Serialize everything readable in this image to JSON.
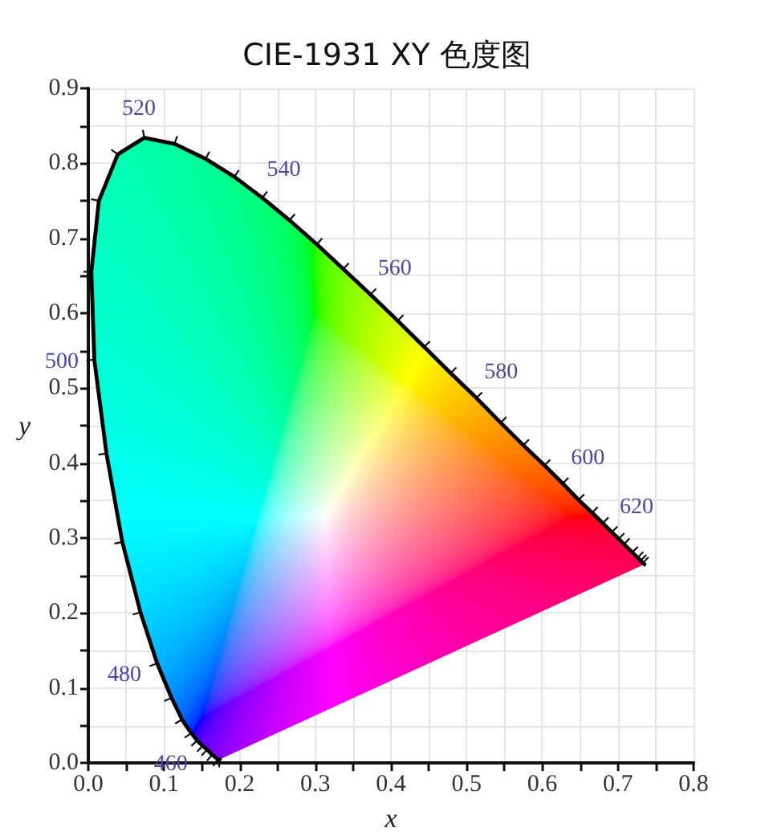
{
  "chart_data": {
    "type": "line",
    "title": "CIE-1931 XY 色度图",
    "xlabel": "x",
    "ylabel": "y",
    "x": [
      0.174,
      0.173,
      0.171,
      0.164,
      0.157,
      0.151,
      0.144,
      0.136,
      0.124,
      0.11,
      0.091,
      0.069,
      0.045,
      0.024,
      0.008,
      0.004,
      0.014,
      0.039,
      0.074,
      0.114,
      0.155,
      0.193,
      0.23,
      0.266,
      0.302,
      0.337,
      0.373,
      0.409,
      0.444,
      0.479,
      0.513,
      0.545,
      0.575,
      0.603,
      0.627,
      0.648,
      0.666,
      0.68,
      0.692,
      0.701,
      0.708,
      0.719,
      0.726,
      0.73,
      0.733,
      0.735
    ],
    "series": [
      {
        "color": "#000000",
        "values": [
          0.005,
          0.005,
          0.005,
          0.011,
          0.018,
          0.023,
          0.03,
          0.04,
          0.058,
          0.087,
          0.133,
          0.201,
          0.295,
          0.413,
          0.538,
          0.655,
          0.75,
          0.812,
          0.834,
          0.826,
          0.806,
          0.782,
          0.754,
          0.724,
          0.692,
          0.659,
          0.625,
          0.59,
          0.555,
          0.52,
          0.487,
          0.454,
          0.424,
          0.397,
          0.373,
          0.351,
          0.334,
          0.32,
          0.308,
          0.299,
          0.292,
          0.281,
          0.274,
          0.27,
          0.267,
          0.265
        ]
      }
    ],
    "xlim": [
      0,
      0.8
    ],
    "ylim": [
      0,
      0.9
    ],
    "xticks": [
      {
        "value": 0,
        "label": "0.0"
      },
      {
        "value": 0.05,
        "label": null
      },
      0.1,
      {
        "value": 0.15,
        "label": null
      },
      0.2,
      {
        "value": 0.25,
        "label": null
      },
      0.3,
      {
        "value": 0.35,
        "label": null
      },
      0.4,
      {
        "value": 0.45,
        "label": null
      },
      0.5,
      {
        "value": 0.55,
        "label": null
      },
      0.6,
      {
        "value": 0.65,
        "label": null
      },
      0.7,
      {
        "value": 0.75,
        "label": null
      },
      0.8
    ],
    "yticks": [
      {
        "value": 0,
        "label": "0.0"
      },
      {
        "value": 0.05,
        "label": null
      },
      0.1,
      {
        "value": 0.15,
        "label": null
      },
      0.2,
      {
        "value": 0.25,
        "label": null
      },
      0.3,
      {
        "value": 0.35,
        "label": null
      },
      0.4,
      {
        "value": 0.45,
        "label": null
      },
      0.5,
      {
        "value": 0.55,
        "label": null
      },
      0.6,
      {
        "value": 0.65,
        "label": null
      },
      0.7,
      {
        "value": 0.75,
        "label": null
      },
      0.8,
      {
        "value": 0.85,
        "label": null
      },
      0.9
    ],
    "grid": true,
    "annotations": [
      {
        "text": "460",
        "x": 0.144,
        "y": 0.03
      },
      {
        "text": "480",
        "x": 0.091,
        "y": 0.133
      },
      {
        "text": "500",
        "x": 0.008,
        "y": 0.538
      },
      {
        "text": "520",
        "x": 0.074,
        "y": 0.834
      },
      {
        "text": "540",
        "x": 0.23,
        "y": 0.754
      },
      {
        "text": "560",
        "x": 0.373,
        "y": 0.625
      },
      {
        "text": "580",
        "x": 0.513,
        "y": 0.487
      },
      {
        "text": "600",
        "x": 0.627,
        "y": 0.373
      },
      {
        "text": "620",
        "x": 0.692,
        "y": 0.308
      }
    ]
  }
}
